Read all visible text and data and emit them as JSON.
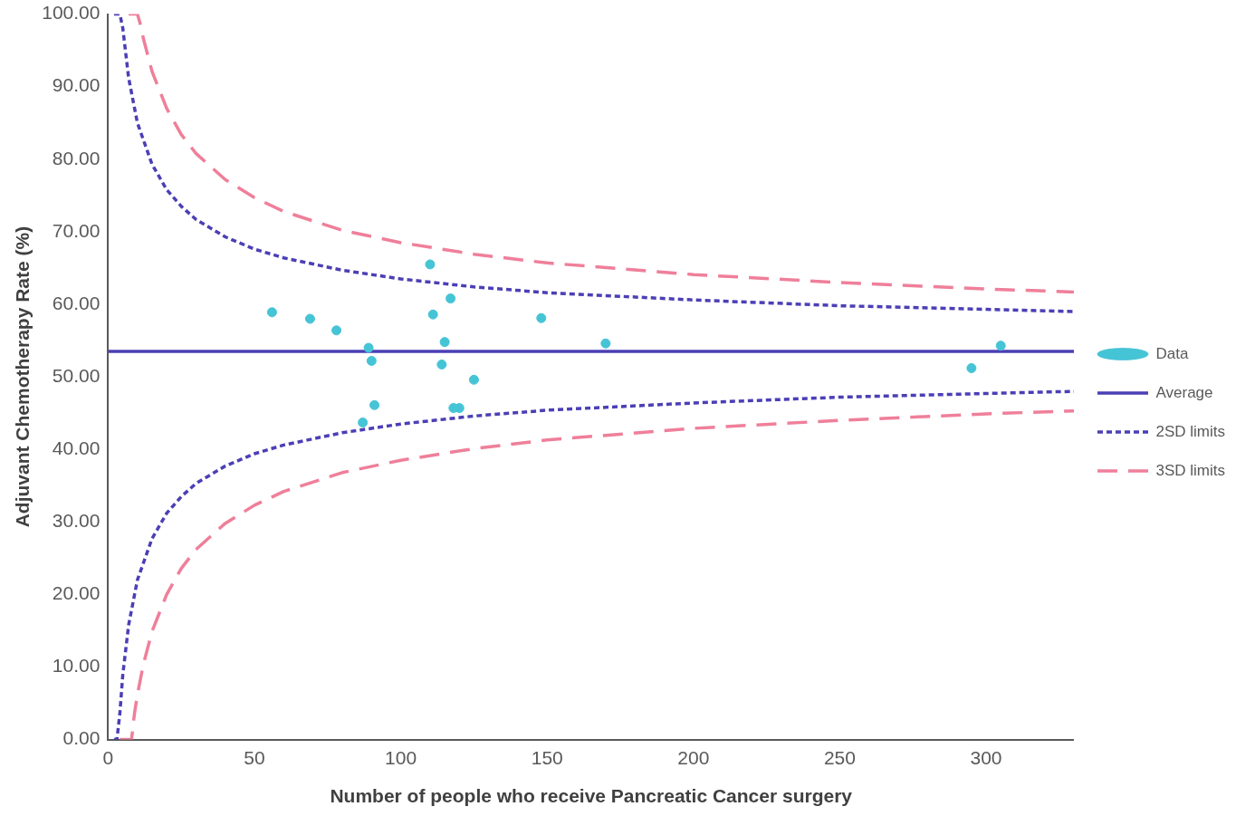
{
  "chart_data": {
    "type": "scatter",
    "xlabel": "Number of people who receive Pancreatic Cancer surgery",
    "ylabel": "Adjuvant Chemotherapy Rate (%)",
    "xlim": [
      0,
      330
    ],
    "xticks": [
      0,
      50,
      100,
      150,
      200,
      250,
      300
    ],
    "ylim": [
      0,
      100
    ],
    "yticks": [
      {
        "value": 0,
        "label": "0.00"
      },
      {
        "value": 10,
        "label": "10.00"
      },
      {
        "value": 20,
        "label": "20.00"
      },
      {
        "value": 30,
        "label": "30.00"
      },
      {
        "value": 40,
        "label": "40.00"
      },
      {
        "value": 50,
        "label": "50.00"
      },
      {
        "value": 60,
        "label": "60.00"
      },
      {
        "value": 70,
        "label": "70.00"
      },
      {
        "value": 80,
        "label": "80.00"
      },
      {
        "value": 90,
        "label": "90.00"
      },
      {
        "value": 100,
        "label": "100.00"
      }
    ],
    "grid": false,
    "legend": "right",
    "series": [
      {
        "name": "Data",
        "type": "scatter",
        "marker": "circle",
        "color": "#45c4d6",
        "x": [
          56,
          69,
          78,
          89,
          90,
          87,
          91,
          110,
          111,
          117,
          115,
          114,
          125,
          118,
          120,
          148,
          170,
          295,
          305
        ],
        "values": [
          58.9,
          58.0,
          56.4,
          54.0,
          52.2,
          43.7,
          46.1,
          65.5,
          58.6,
          60.8,
          54.8,
          51.7,
          49.6,
          45.7,
          45.7,
          58.1,
          54.6,
          51.2,
          54.3
        ]
      },
      {
        "name": "Average",
        "type": "line",
        "marker": "none",
        "line_style": "solid",
        "color": "#4b3fb5",
        "x": [
          0,
          330
        ],
        "values": [
          53.5,
          53.5
        ]
      },
      {
        "name": "2SD limits",
        "type": "line",
        "marker": "none",
        "line_style": "dotted",
        "color": "#4b3fb5",
        "x": [
          2,
          4,
          5,
          7,
          10,
          15,
          20,
          25,
          30,
          40,
          50,
          60,
          80,
          100,
          125,
          150,
          200,
          250,
          300,
          330
        ],
        "values": [
          100,
          100,
          98.1,
          91.2,
          85.0,
          79.3,
          75.8,
          73.5,
          71.7,
          69.3,
          67.6,
          66.4,
          64.7,
          63.5,
          62.4,
          61.6,
          60.6,
          59.8,
          59.3,
          59.0
        ]
      },
      {
        "type": "line",
        "marker": "none",
        "line_style": "dotted",
        "color": "#4b3fb5",
        "x": [
          2,
          3,
          4,
          5,
          7,
          10,
          15,
          20,
          25,
          30,
          40,
          50,
          60,
          80,
          100,
          125,
          150,
          200,
          250,
          300,
          330
        ],
        "values": [
          0,
          0,
          3.6,
          8.9,
          15.8,
          22.0,
          27.7,
          31.2,
          33.5,
          35.3,
          37.7,
          39.4,
          40.6,
          42.3,
          43.5,
          44.6,
          45.4,
          46.4,
          47.2,
          47.7,
          48.0
        ]
      },
      {
        "name": "3SD limits",
        "type": "line",
        "marker": "none",
        "line_style": "dashed",
        "color": "#ef7f9a",
        "x": [
          7,
          10,
          11,
          12,
          15,
          20,
          25,
          30,
          40,
          50,
          60,
          80,
          100,
          125,
          150,
          200,
          250,
          300,
          330
        ],
        "values": [
          100,
          100,
          98.6,
          96.7,
          92.1,
          87.0,
          83.4,
          80.8,
          77.2,
          74.7,
          72.8,
          70.2,
          68.5,
          66.9,
          65.7,
          64.1,
          63.0,
          62.1,
          61.7
        ]
      },
      {
        "type": "line",
        "marker": "none",
        "line_style": "dashed",
        "color": "#ef7f9a",
        "x": [
          4,
          8,
          9,
          10,
          12,
          15,
          20,
          25,
          30,
          40,
          50,
          60,
          80,
          100,
          125,
          150,
          200,
          250,
          300,
          330
        ],
        "values": [
          0,
          0,
          3.6,
          6.2,
          10.3,
          14.9,
          20.0,
          23.6,
          26.2,
          29.8,
          32.3,
          34.2,
          36.8,
          38.5,
          40.1,
          41.3,
          42.9,
          44.0,
          44.9,
          45.3
        ]
      }
    ]
  }
}
